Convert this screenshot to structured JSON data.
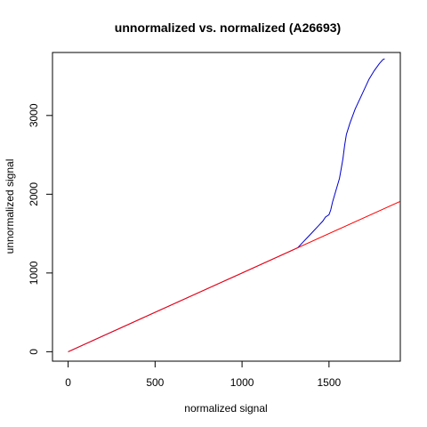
{
  "chart_data": {
    "type": "line",
    "title": "unnormalized vs. normalized (A26693)",
    "xlabel": "normalized signal",
    "ylabel": "unnormalized signal",
    "xlim": [
      -90,
      1910
    ],
    "ylim": [
      -120,
      3800
    ],
    "x_ticks": [
      0,
      500,
      1000,
      1500
    ],
    "y_ticks": [
      0,
      1000,
      2000,
      3000
    ],
    "grid": false,
    "legend": "none",
    "series": [
      {
        "color": "#0000cd",
        "points": [
          [
            0,
            0
          ],
          [
            500,
            500
          ],
          [
            1000,
            1000
          ],
          [
            1300,
            1300
          ],
          [
            1320,
            1320
          ],
          [
            1350,
            1390
          ],
          [
            1380,
            1460
          ],
          [
            1410,
            1530
          ],
          [
            1440,
            1600
          ],
          [
            1465,
            1660
          ],
          [
            1480,
            1710
          ],
          [
            1500,
            1740
          ],
          [
            1510,
            1800
          ],
          [
            1520,
            1900
          ],
          [
            1540,
            2050
          ],
          [
            1560,
            2200
          ],
          [
            1570,
            2320
          ],
          [
            1580,
            2450
          ],
          [
            1590,
            2620
          ],
          [
            1600,
            2760
          ],
          [
            1620,
            2900
          ],
          [
            1650,
            3080
          ],
          [
            1690,
            3270
          ],
          [
            1730,
            3460
          ],
          [
            1760,
            3570
          ],
          [
            1790,
            3660
          ],
          [
            1810,
            3710
          ],
          [
            1820,
            3720
          ]
        ]
      },
      {
        "color": "#ff0000",
        "points": [
          [
            0,
            0
          ],
          [
            1910,
            1910
          ]
        ]
      }
    ]
  }
}
